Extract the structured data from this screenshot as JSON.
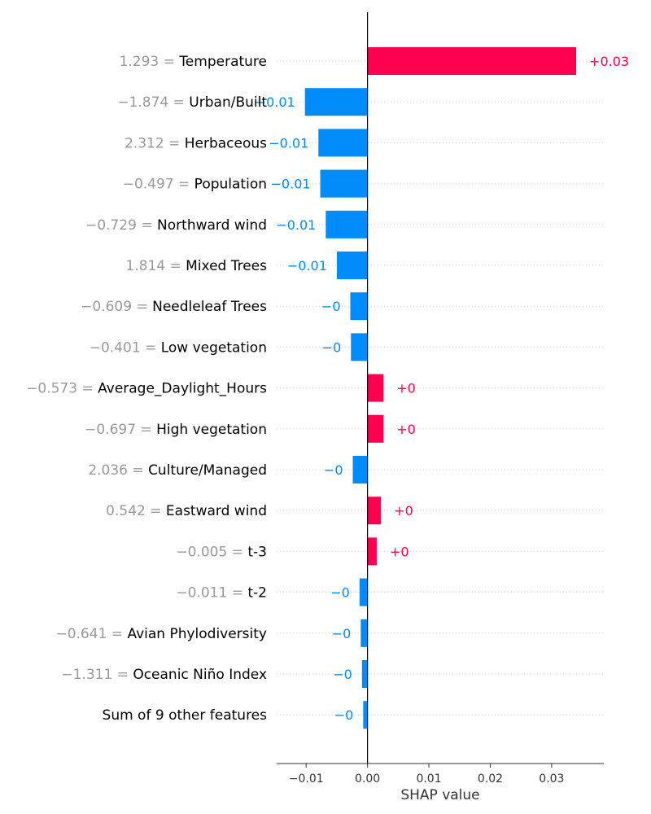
{
  "chart_data": {
    "type": "bar",
    "orientation": "horizontal",
    "xlabel": "SHAP value",
    "xlim": [
      -0.0148,
      0.0385
    ],
    "xticks": [
      -0.01,
      0.0,
      0.01,
      0.02,
      0.03
    ],
    "xtick_labels": [
      "−0.01",
      "0.00",
      "0.01",
      "0.02",
      "0.03"
    ],
    "grid": "horizontal dotted per row",
    "colors": {
      "positive": "#ff0051",
      "negative": "#008bfb",
      "feature_value": "#999999",
      "feature_name": "#000000"
    },
    "rows": [
      {
        "value_label": "1.293 =",
        "feature": "Temperature",
        "shap": 0.034,
        "label": "+0.03"
      },
      {
        "value_label": "−1.874 =",
        "feature": "Urban/Built",
        "shap": -0.0102,
        "label": "−0.01"
      },
      {
        "value_label": "2.312 =",
        "feature": "Herbaceous",
        "shap": -0.008,
        "label": "−0.01"
      },
      {
        "value_label": "−0.497 =",
        "feature": "Population",
        "shap": -0.0077,
        "label": "−0.01"
      },
      {
        "value_label": "−0.729 =",
        "feature": "Northward wind",
        "shap": -0.0068,
        "label": "−0.01"
      },
      {
        "value_label": "1.814 =",
        "feature": "Mixed Trees",
        "shap": -0.005,
        "label": "−0.01"
      },
      {
        "value_label": "−0.609 =",
        "feature": "Needleleaf Trees",
        "shap": -0.0028,
        "label": "−0"
      },
      {
        "value_label": "−0.401 =",
        "feature": "Low vegetation",
        "shap": -0.0027,
        "label": "−0"
      },
      {
        "value_label": "−0.573 =",
        "feature": "Average_Daylight_Hours",
        "shap": 0.0026,
        "label": "+0"
      },
      {
        "value_label": "−0.697 =",
        "feature": "High vegetation",
        "shap": 0.0026,
        "label": "+0"
      },
      {
        "value_label": "2.036 =",
        "feature": "Culture/Managed",
        "shap": -0.0024,
        "label": "−0"
      },
      {
        "value_label": "0.542 =",
        "feature": "Eastward wind",
        "shap": 0.0022,
        "label": "+0"
      },
      {
        "value_label": "−0.005 =",
        "feature": "t-3",
        "shap": 0.0015,
        "label": "+0"
      },
      {
        "value_label": "−0.011 =",
        "feature": "t-2",
        "shap": -0.0013,
        "label": "−0"
      },
      {
        "value_label": "−0.641 =",
        "feature": "Avian Phylodiversity",
        "shap": -0.0011,
        "label": "−0"
      },
      {
        "value_label": "−1.311 =",
        "feature": "Oceanic Niño Index",
        "shap": -0.0009,
        "label": "−0"
      },
      {
        "value_label": "",
        "feature": "Sum of 9 other features",
        "shap": -0.0007,
        "label": "−0"
      }
    ]
  }
}
